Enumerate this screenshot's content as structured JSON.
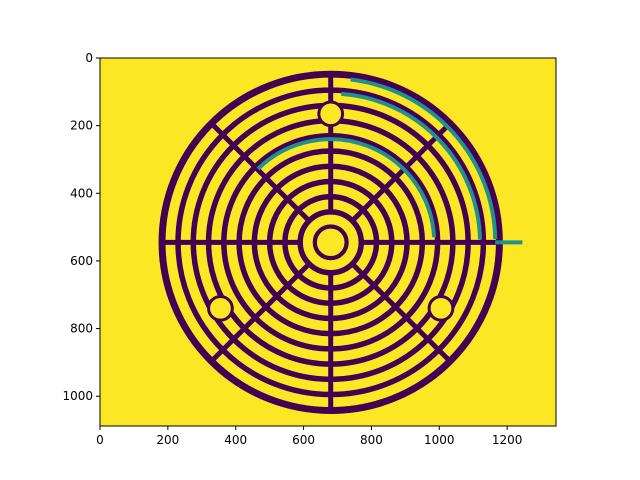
{
  "figure": {
    "type": "image-plot",
    "colors": {
      "background": "#fde725",
      "wall": "#440154",
      "path": "#21918c",
      "axis": "#000000"
    },
    "x_axis": {
      "range": [
        0,
        1344
      ],
      "ticks": [
        {
          "value": 0,
          "label": "0"
        },
        {
          "value": 200,
          "label": "200"
        },
        {
          "value": 400,
          "label": "400"
        },
        {
          "value": 600,
          "label": "600"
        },
        {
          "value": 800,
          "label": "800"
        },
        {
          "value": 1000,
          "label": "1000"
        },
        {
          "value": 1200,
          "label": "1200"
        }
      ]
    },
    "y_axis": {
      "range": [
        0,
        1088
      ],
      "inverted": true,
      "ticks": [
        {
          "value": 0,
          "label": "0"
        },
        {
          "value": 200,
          "label": "200"
        },
        {
          "value": 400,
          "label": "400"
        },
        {
          "value": 600,
          "label": "600"
        },
        {
          "value": 800,
          "label": "800"
        },
        {
          "value": 1000,
          "label": "1000"
        }
      ]
    },
    "labyrinth": {
      "center": [
        680,
        545
      ],
      "rings": 11,
      "inner_radius": 45,
      "ring_spacing": 45,
      "path_ring_center": 305,
      "path_exit_y": 545
    }
  }
}
